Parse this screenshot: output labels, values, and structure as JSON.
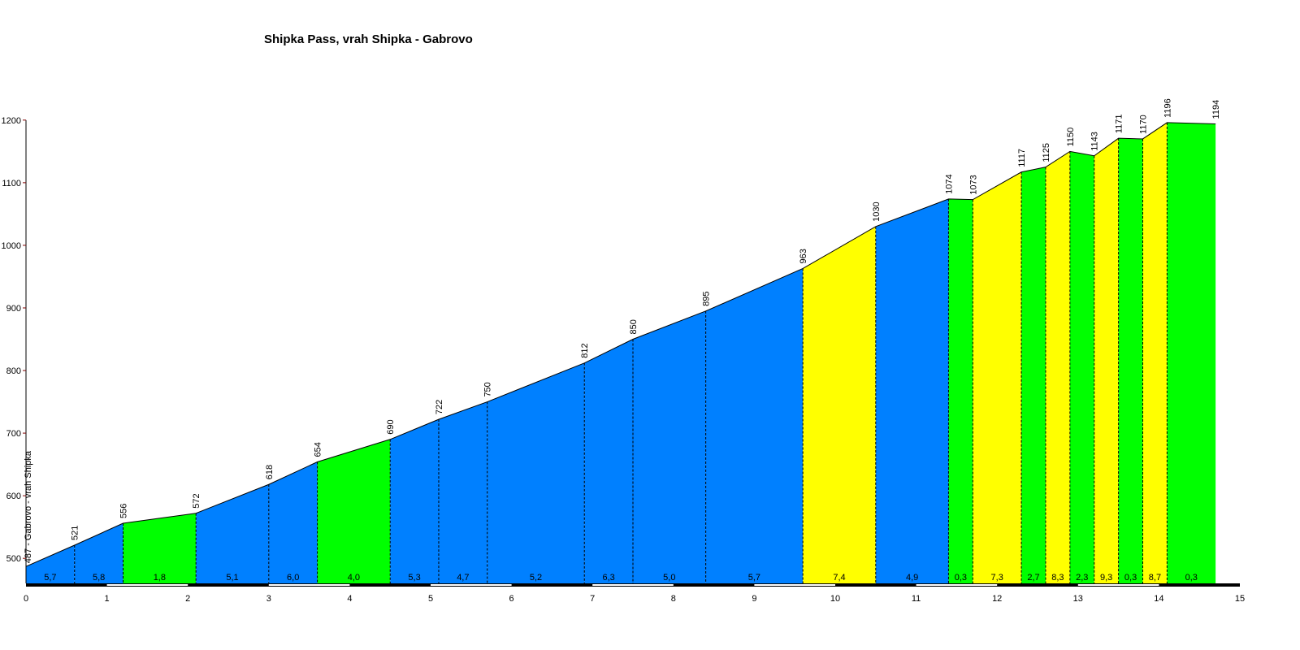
{
  "chart_data": {
    "type": "area",
    "title": "Shipka Pass, vrah Shipka - Gabrovo",
    "xlabel": "",
    "ylabel": "",
    "start_label": "487 - Gabrovo - vrah Shipka",
    "xlim": [
      0,
      15
    ],
    "ylim": [
      460,
      1200
    ],
    "x_ticks": [
      "0",
      "1",
      "2",
      "3",
      "4",
      "5",
      "6",
      "7",
      "8",
      "9",
      "10",
      "11",
      "12",
      "13",
      "14",
      "15"
    ],
    "y_ticks": [
      "500",
      "600",
      "700",
      "800",
      "900",
      "1000",
      "1100",
      "1200"
    ],
    "profile": [
      {
        "x": 0.0,
        "elev": 487,
        "label": ""
      },
      {
        "x": 0.6,
        "elev": 521,
        "label": "521"
      },
      {
        "x": 1.2,
        "elev": 556,
        "label": "556"
      },
      {
        "x": 2.1,
        "elev": 572,
        "label": "572"
      },
      {
        "x": 3.0,
        "elev": 618,
        "label": "618"
      },
      {
        "x": 3.6,
        "elev": 654,
        "label": "654"
      },
      {
        "x": 4.5,
        "elev": 690,
        "label": "690"
      },
      {
        "x": 5.1,
        "elev": 722,
        "label": "722"
      },
      {
        "x": 5.7,
        "elev": 750,
        "label": "750"
      },
      {
        "x": 6.9,
        "elev": 812,
        "label": "812"
      },
      {
        "x": 7.5,
        "elev": 850,
        "label": "850"
      },
      {
        "x": 8.4,
        "elev": 895,
        "label": "895"
      },
      {
        "x": 9.6,
        "elev": 963,
        "label": "963"
      },
      {
        "x": 10.5,
        "elev": 1030,
        "label": "1030"
      },
      {
        "x": 11.4,
        "elev": 1074,
        "label": "1074"
      },
      {
        "x": 11.7,
        "elev": 1073,
        "label": "1073"
      },
      {
        "x": 12.3,
        "elev": 1117,
        "label": "1117"
      },
      {
        "x": 12.6,
        "elev": 1125,
        "label": "1125"
      },
      {
        "x": 12.9,
        "elev": 1150,
        "label": "1150"
      },
      {
        "x": 13.2,
        "elev": 1143,
        "label": "1143"
      },
      {
        "x": 13.5,
        "elev": 1171,
        "label": "1171"
      },
      {
        "x": 13.8,
        "elev": 1170,
        "label": "1170"
      },
      {
        "x": 14.1,
        "elev": 1196,
        "label": "1196"
      },
      {
        "x": 14.7,
        "elev": 1194,
        "label": "1194"
      }
    ],
    "segments": [
      {
        "gradient": "5,7",
        "color": "#0080ff"
      },
      {
        "gradient": "5,8",
        "color": "#0080ff"
      },
      {
        "gradient": "1,8",
        "color": "#00ff00"
      },
      {
        "gradient": "5,1",
        "color": "#0080ff"
      },
      {
        "gradient": "6,0",
        "color": "#0080ff"
      },
      {
        "gradient": "4,0",
        "color": "#00ff00"
      },
      {
        "gradient": "5,3",
        "color": "#0080ff"
      },
      {
        "gradient": "4,7",
        "color": "#0080ff"
      },
      {
        "gradient": "5,2",
        "color": "#0080ff"
      },
      {
        "gradient": "6,3",
        "color": "#0080ff"
      },
      {
        "gradient": "5,0",
        "color": "#0080ff"
      },
      {
        "gradient": "5,7",
        "color": "#0080ff"
      },
      {
        "gradient": "7,4",
        "color": "#ffff00"
      },
      {
        "gradient": "4,9",
        "color": "#0080ff"
      },
      {
        "gradient": "0,3",
        "color": "#00ff00"
      },
      {
        "gradient": "7,3",
        "color": "#ffff00"
      },
      {
        "gradient": "2,7",
        "color": "#00ff00"
      },
      {
        "gradient": "8,3",
        "color": "#ffff00"
      },
      {
        "gradient": "2,3",
        "color": "#00ff00"
      },
      {
        "gradient": "9,3",
        "color": "#ffff00"
      },
      {
        "gradient": "0,3",
        "color": "#00ff00"
      },
      {
        "gradient": "8,7",
        "color": "#ffff00"
      },
      {
        "gradient": "0,3",
        "color": "#00ff00"
      }
    ],
    "colors": {
      "blue_segment": "#0080ff",
      "green_segment": "#00ff00",
      "yellow_segment": "#ffff00",
      "axis": "#000000",
      "y_tick_mark": "#800000"
    },
    "grid": false,
    "legend": "none"
  }
}
